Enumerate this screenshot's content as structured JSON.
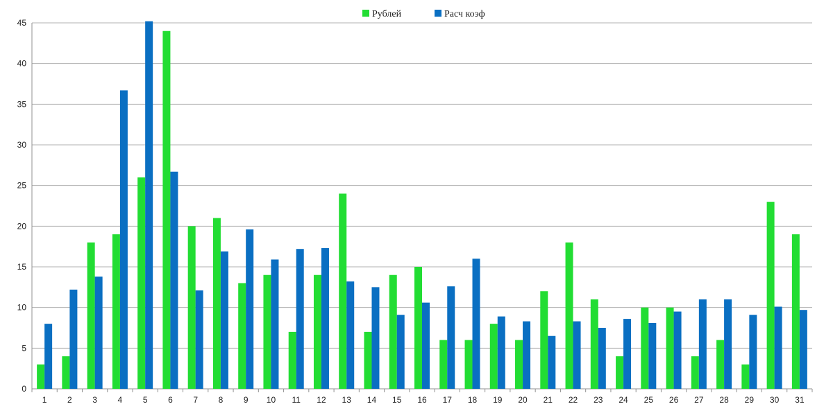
{
  "chart_data": {
    "type": "bar",
    "categories": [
      "1",
      "2",
      "3",
      "4",
      "5",
      "6",
      "7",
      "8",
      "9",
      "10",
      "11",
      "12",
      "13",
      "14",
      "15",
      "16",
      "17",
      "18",
      "19",
      "20",
      "21",
      "22",
      "23",
      "24",
      "25",
      "26",
      "27",
      "28",
      "29",
      "30",
      "31"
    ],
    "series": [
      {
        "name": "Рублей",
        "color": "#22dd33",
        "values": [
          3,
          4,
          18,
          19,
          26,
          44,
          20,
          21,
          13,
          14,
          7,
          14,
          24,
          7,
          14,
          15,
          6,
          6,
          8,
          6,
          12,
          18,
          11,
          4,
          10,
          10,
          4,
          6,
          3,
          23,
          19
        ]
      },
      {
        "name": "Расч коэф",
        "color": "#0a6fc2",
        "values": [
          8,
          12.2,
          13.8,
          36.7,
          45.2,
          26.7,
          12.1,
          16.9,
          19.6,
          15.9,
          17.2,
          17.3,
          13.2,
          12.5,
          9.1,
          10.6,
          12.6,
          16,
          8.9,
          8.3,
          6.5,
          8.3,
          7.5,
          8.6,
          8.1,
          9.5,
          11,
          11,
          9.1,
          10.1,
          9.7
        ]
      }
    ],
    "yticks": [
      "0",
      "5",
      "10",
      "15",
      "20",
      "25",
      "30",
      "35",
      "40",
      "45"
    ],
    "ylim": [
      0,
      45
    ],
    "grid": true,
    "legend_position": "top-center"
  }
}
